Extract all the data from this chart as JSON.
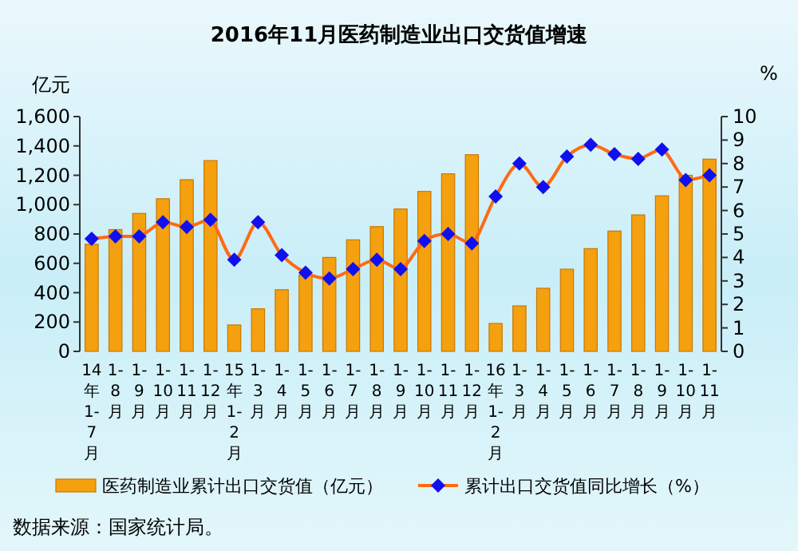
{
  "chart_data": {
    "type": "bar",
    "title": "2016年11月医药制造业出口交货值增速",
    "ylabel": "亿元",
    "y2label": "%",
    "categories": [
      "14年1-7月",
      "1-8月",
      "1-9月",
      "1-10月",
      "1-11月",
      "1-12月",
      "15年1-2月",
      "1-3月",
      "1-4月",
      "1-5月",
      "1-6月",
      "1-7月",
      "1-8月",
      "1-9月",
      "1-10月",
      "1-11月",
      "1-12月",
      "16年1-2月",
      "1-3月",
      "1-4月",
      "1-5月",
      "1-6月",
      "1-7月",
      "1-8月",
      "1-9月",
      "1-10月",
      "1-11月"
    ],
    "series": [
      {
        "name": "医药制造业累计出口交货值（亿元）",
        "color": "#f5a00f",
        "values": [
          730,
          830,
          940,
          1040,
          1170,
          1300,
          180,
          290,
          420,
          520,
          640,
          760,
          850,
          970,
          1090,
          1210,
          1340,
          190,
          310,
          430,
          560,
          700,
          820,
          930,
          1060,
          1200,
          1310
        ]
      },
      {
        "name": "累计出口交货值同比增长（%）",
        "type": "line",
        "axis": "y2",
        "color": "#ff6a13",
        "marker": "diamond",
        "values": [
          4.8,
          4.9,
          4.9,
          5.5,
          5.3,
          5.6,
          3.9,
          5.5,
          4.1,
          3.35,
          3.1,
          3.5,
          3.9,
          3.5,
          4.7,
          5.0,
          4.6,
          6.6,
          8.0,
          7.0,
          8.3,
          8.8,
          8.4,
          8.2,
          8.6,
          7.3,
          7.5
        ]
      }
    ],
    "ylim": [
      0,
      1600
    ],
    "yticks": [
      0,
      200,
      400,
      600,
      800,
      {
        "value": 1000,
        "label": "1,000"
      },
      {
        "value": 1200,
        "label": "1,200"
      },
      {
        "value": 1400,
        "label": "1,400"
      },
      {
        "value": 1600,
        "label": "1,600"
      }
    ],
    "y2lim": [
      0,
      10
    ],
    "y2ticks": [
      0,
      1,
      2,
      3,
      4,
      5,
      6,
      7,
      8,
      9,
      10
    ],
    "grid": false,
    "legend": "bottom",
    "annotations": [
      "数据来源：国家统计局。"
    ]
  }
}
